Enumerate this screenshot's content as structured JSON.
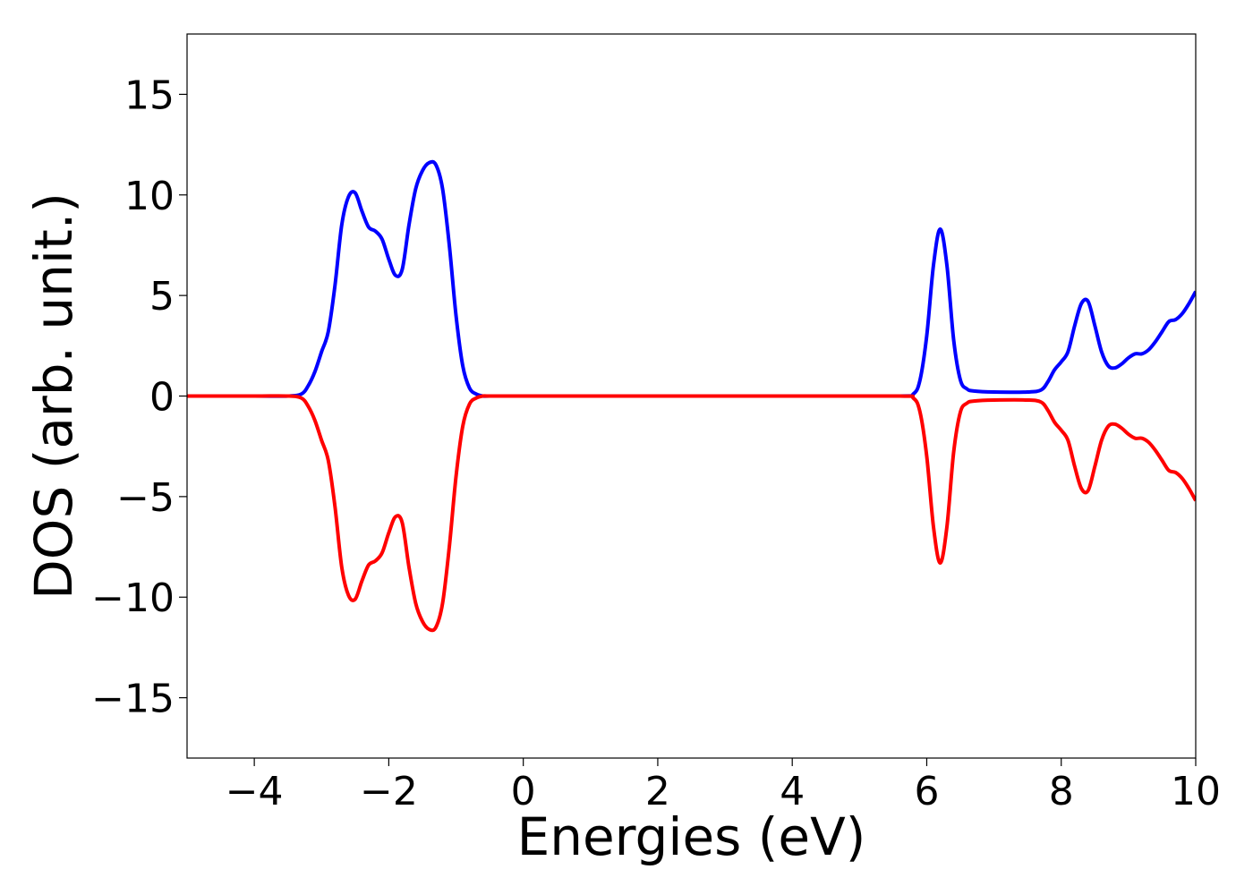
{
  "chart_data": {
    "type": "line",
    "xlabel": "Energies (eV)",
    "ylabel": "DOS (arb. unit.)",
    "xlim": [
      -5,
      10
    ],
    "ylim": [
      -18,
      18
    ],
    "xticks": [
      -4,
      -2,
      0,
      2,
      4,
      6,
      8,
      10
    ],
    "xtick_labels": [
      "−4",
      "−2",
      "0",
      "2",
      "4",
      "6",
      "8",
      "10"
    ],
    "yticks": [
      -15,
      -10,
      -5,
      0,
      5,
      10,
      15
    ],
    "ytick_labels": [
      "−15",
      "−10",
      "−5",
      "0",
      "5",
      "10",
      "15"
    ],
    "grid": false,
    "series": [
      {
        "color": "#0000ff",
        "x": [
          -5.0,
          -4.0,
          -3.5,
          -3.3,
          -3.2,
          -3.1,
          -3.0,
          -2.9,
          -2.8,
          -2.7,
          -2.6,
          -2.5,
          -2.4,
          -2.3,
          -2.2,
          -2.1,
          -2.0,
          -1.9,
          -1.8,
          -1.7,
          -1.6,
          -1.5,
          -1.4,
          -1.3,
          -1.2,
          -1.1,
          -1.0,
          -0.9,
          -0.8,
          -0.7,
          -0.6,
          -0.5,
          0.0,
          2.0,
          4.0,
          5.6,
          5.8,
          5.9,
          6.0,
          6.1,
          6.2,
          6.3,
          6.4,
          6.5,
          6.6,
          6.7,
          7.0,
          7.5,
          7.7,
          7.8,
          7.9,
          8.0,
          8.1,
          8.2,
          8.3,
          8.4,
          8.5,
          8.6,
          8.7,
          8.8,
          8.9,
          9.0,
          9.1,
          9.2,
          9.3,
          9.4,
          9.5,
          9.6,
          9.7,
          9.8,
          9.9,
          10.0
        ],
        "y": [
          0.0,
          0.0,
          0.0,
          0.1,
          0.5,
          1.2,
          2.2,
          3.2,
          5.5,
          8.5,
          9.9,
          10.1,
          9.2,
          8.4,
          8.2,
          7.8,
          6.8,
          6.0,
          6.3,
          8.5,
          10.3,
          11.2,
          11.6,
          11.5,
          10.3,
          7.5,
          4.0,
          1.5,
          0.4,
          0.1,
          0.0,
          0.0,
          0.0,
          0.0,
          0.0,
          0.0,
          0.1,
          0.8,
          3.0,
          6.5,
          8.3,
          6.5,
          2.8,
          0.8,
          0.35,
          0.25,
          0.2,
          0.2,
          0.3,
          0.7,
          1.3,
          1.7,
          2.2,
          3.5,
          4.6,
          4.7,
          3.5,
          2.2,
          1.5,
          1.4,
          1.6,
          1.9,
          2.1,
          2.1,
          2.3,
          2.7,
          3.2,
          3.7,
          3.8,
          4.1,
          4.6,
          5.2
        ]
      },
      {
        "color": "#ff0000",
        "x": [
          -5.0,
          -4.0,
          -3.5,
          -3.3,
          -3.2,
          -3.1,
          -3.0,
          -2.9,
          -2.8,
          -2.7,
          -2.6,
          -2.5,
          -2.4,
          -2.3,
          -2.2,
          -2.1,
          -2.0,
          -1.9,
          -1.8,
          -1.7,
          -1.6,
          -1.5,
          -1.4,
          -1.3,
          -1.2,
          -1.1,
          -1.0,
          -0.9,
          -0.8,
          -0.7,
          -0.6,
          -0.5,
          0.0,
          2.0,
          4.0,
          5.6,
          5.8,
          5.9,
          6.0,
          6.1,
          6.2,
          6.3,
          6.4,
          6.5,
          6.6,
          6.7,
          7.0,
          7.5,
          7.7,
          7.8,
          7.9,
          8.0,
          8.1,
          8.2,
          8.3,
          8.4,
          8.5,
          8.6,
          8.7,
          8.8,
          8.9,
          9.0,
          9.1,
          9.2,
          9.3,
          9.4,
          9.5,
          9.6,
          9.7,
          9.8,
          9.9,
          10.0
        ],
        "y": [
          0.0,
          0.0,
          0.0,
          -0.1,
          -0.5,
          -1.2,
          -2.2,
          -3.2,
          -5.5,
          -8.5,
          -9.9,
          -10.1,
          -9.2,
          -8.4,
          -8.2,
          -7.8,
          -6.8,
          -6.0,
          -6.3,
          -8.5,
          -10.3,
          -11.2,
          -11.6,
          -11.5,
          -10.3,
          -7.5,
          -4.0,
          -1.5,
          -0.4,
          -0.1,
          0.0,
          0.0,
          0.0,
          0.0,
          0.0,
          0.0,
          -0.1,
          -0.8,
          -3.0,
          -6.5,
          -8.3,
          -6.5,
          -2.8,
          -0.8,
          -0.35,
          -0.25,
          -0.2,
          -0.2,
          -0.3,
          -0.7,
          -1.3,
          -1.7,
          -2.2,
          -3.5,
          -4.6,
          -4.7,
          -3.5,
          -2.2,
          -1.5,
          -1.4,
          -1.6,
          -1.9,
          -2.1,
          -2.1,
          -2.3,
          -2.7,
          -3.2,
          -3.7,
          -3.8,
          -4.1,
          -4.6,
          -5.2
        ]
      }
    ]
  }
}
